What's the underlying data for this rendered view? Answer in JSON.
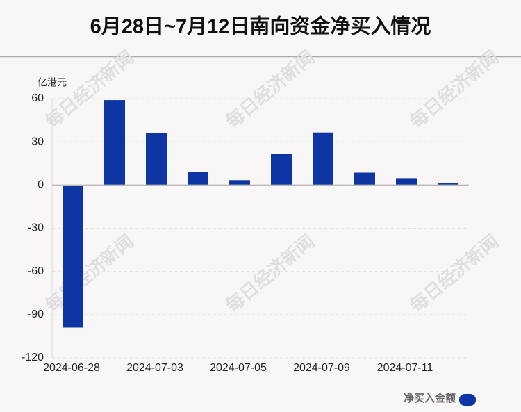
{
  "chart_data": {
    "type": "bar",
    "title": "6月28日~7月12日南向资金净买入情况",
    "y_unit": "亿港元",
    "watermark": "每日经济新闻",
    "categories": [
      "2024-06-28",
      null,
      "2024-07-03",
      null,
      "2024-07-05",
      null,
      "2024-07-09",
      null,
      "2024-07-11",
      null
    ],
    "series": [
      {
        "name": "净买入金额",
        "color": "#0d35a3",
        "values": [
          -99,
          59,
          36,
          9,
          3.4,
          21.6,
          36.5,
          8.6,
          4.8,
          1.4
        ]
      }
    ],
    "ylim": [
      -120,
      60
    ],
    "yticks": [
      -120,
      -90,
      -60,
      -30,
      0,
      30,
      60
    ],
    "grid": true,
    "legend": "bottom-right"
  }
}
